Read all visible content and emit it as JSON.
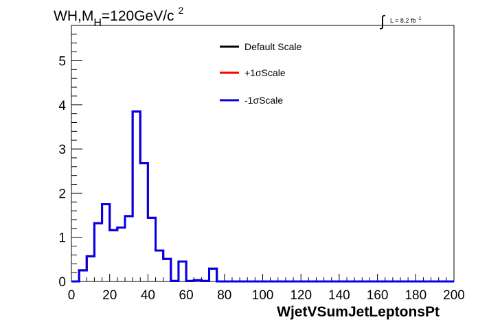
{
  "chart_data": {
    "type": "step",
    "title_main": "WH,M",
    "title_sub": "H",
    "title_rest": "=120GeV/c",
    "title_sup": "2",
    "lumi_label": "L = 8.2 fb",
    "lumi_sup": "-1",
    "xlabel": "WjetVSumJetLeptonsPt",
    "ylabel": "",
    "xlim": [
      0,
      200
    ],
    "ylim": [
      0,
      5.8
    ],
    "xticks": [
      0,
      20,
      40,
      60,
      80,
      100,
      120,
      140,
      160,
      180,
      200
    ],
    "yticks": [
      0,
      1,
      2,
      3,
      4,
      5
    ],
    "bin_width": 4,
    "bin_edges_start": 0,
    "values": [
      0,
      0.25,
      0.57,
      1.32,
      1.75,
      1.16,
      1.22,
      1.48,
      3.85,
      2.68,
      1.44,
      0.7,
      0.51,
      0.01,
      0.45,
      0.01,
      0.03,
      0.01,
      0.29,
      0,
      0,
      0,
      0,
      0,
      0,
      0,
      0,
      0,
      0,
      0,
      0,
      0,
      0,
      0,
      0,
      0,
      0,
      0,
      0,
      0,
      0,
      0,
      0,
      0,
      0,
      0,
      0,
      0,
      0,
      0
    ],
    "series": [
      {
        "name": "Default Scale",
        "color": "#000000"
      },
      {
        "name": "+1σScale",
        "color": "#ff0000"
      },
      {
        "name": "-1σScale",
        "color": "#0000ee"
      }
    ],
    "legend_position": "top-center",
    "grid": false
  }
}
